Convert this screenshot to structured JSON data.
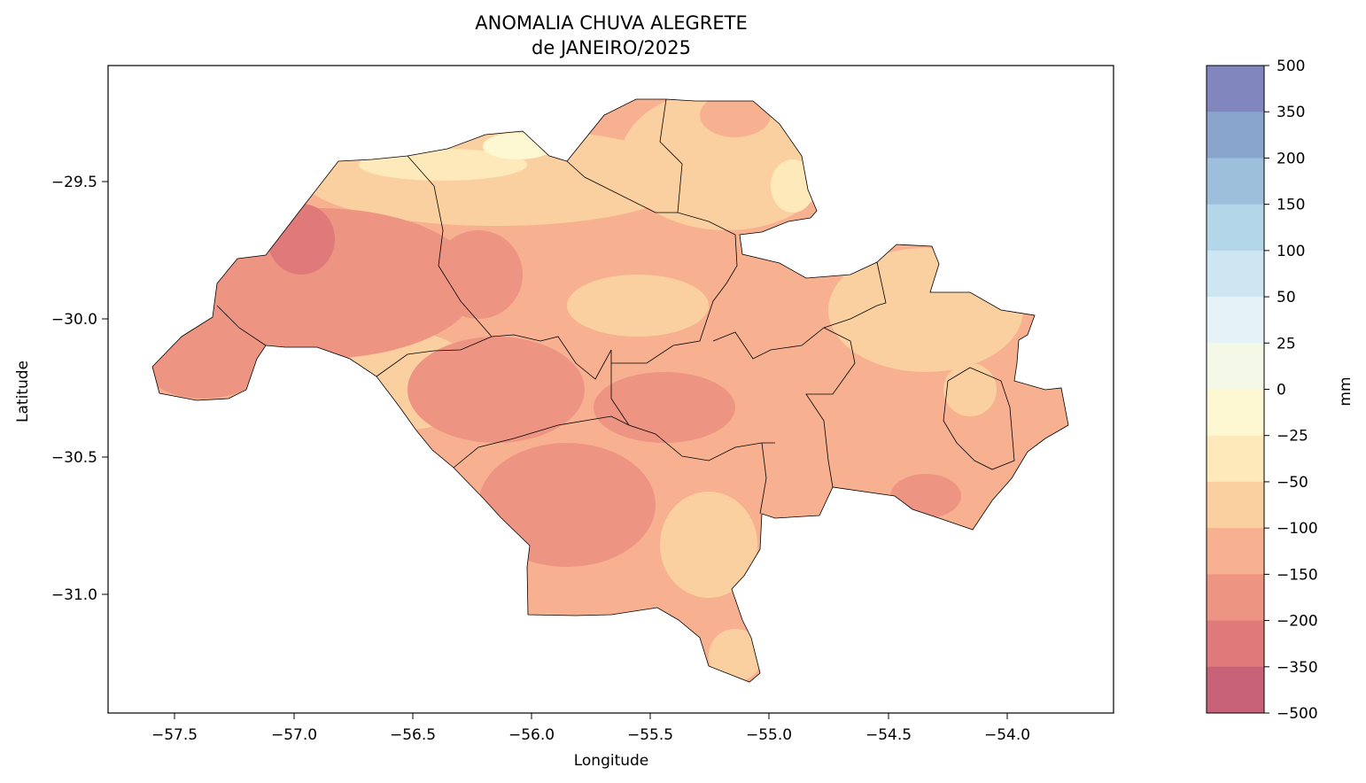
{
  "title_line1": "ANOMALIA CHUVA ALEGRETE",
  "title_line2": "de JANEIRO/2025",
  "xlabel": "Longitude",
  "ylabel": "Latitude",
  "x_ticks": [
    "−57.5",
    "−57.0",
    "−56.5",
    "−56.0",
    "−55.5",
    "−55.0",
    "−54.5",
    "−54.0"
  ],
  "y_ticks": [
    "−29.5",
    "−30.0",
    "−30.5",
    "−31.0"
  ],
  "colorbar": {
    "label": "mm",
    "ticks": [
      "500",
      "350",
      "200",
      "150",
      "100",
      "50",
      "25",
      "0",
      "−25",
      "−50",
      "−100",
      "−150",
      "−200",
      "−350",
      "−500"
    ],
    "colors": [
      "#8186bf",
      "#8aa5cd",
      "#9dbfdb",
      "#b3d7e8",
      "#cde6f1",
      "#e5f3f9",
      "#f3f9e6",
      "#fdf8d2",
      "#fde9b9",
      "#fbd0a1",
      "#f7b190",
      "#ee9483",
      "#e07a7a",
      "#c86279"
    ]
  },
  "map_colors": {
    "light": "#fbd0a1",
    "medium": "#f7b190",
    "strong": "#ee9483",
    "stronger": "#e07a7a",
    "pale": "#fde9b9",
    "paler": "#fdf8d2"
  }
}
